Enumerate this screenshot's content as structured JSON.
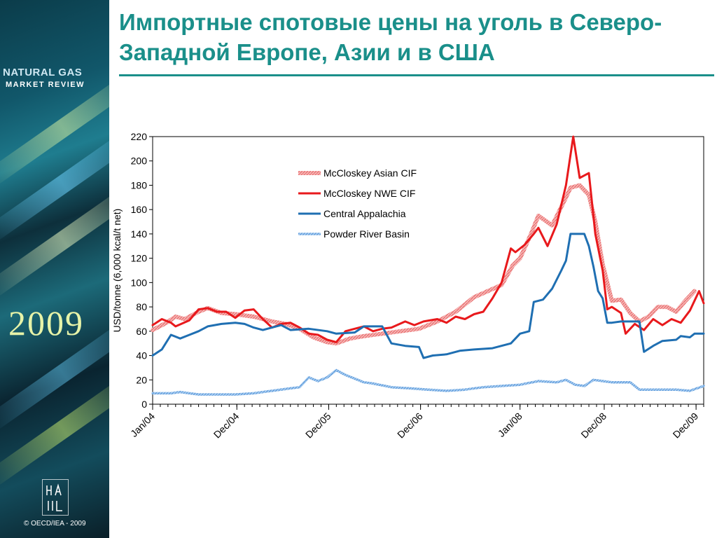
{
  "slide": {
    "title": "Импортные спотовые цены на уголь в Северо-Западной Европе, Азии и в США",
    "brand_line1": "NATURAL GAS",
    "brand_line2": "MARKET REVIEW",
    "year": "2009",
    "copyright": "© OECD/IEA - 2009",
    "accent_color": "#1a8f8a"
  },
  "chart_data": {
    "type": "line",
    "title": "",
    "xlabel": "",
    "ylabel": "USD/tonne (6,000 kcal/t net)",
    "ylim": [
      0,
      220
    ],
    "yticks": [
      0,
      20,
      40,
      60,
      80,
      100,
      120,
      140,
      160,
      180,
      200,
      220
    ],
    "xlim": [
      2004.0,
      2010.0
    ],
    "xtick_labels": [
      {
        "x": 2004.0,
        "label": "Jan/04"
      },
      {
        "x": 2004.917,
        "label": "Dec/04"
      },
      {
        "x": 2005.917,
        "label": "Dec/05"
      },
      {
        "x": 2006.917,
        "label": "Dec/06"
      },
      {
        "x": 2008.0,
        "label": "Jan/08"
      },
      {
        "x": 2008.917,
        "label": "Dec/08"
      },
      {
        "x": 2009.917,
        "label": "Dec/09"
      }
    ],
    "grid": false,
    "legend_position": "top-right",
    "series": [
      {
        "name": "McCloskey Asian CIF",
        "color": "#f29a9a",
        "style": "thick-hatched",
        "points": [
          [
            2004.0,
            61
          ],
          [
            2004.15,
            67
          ],
          [
            2004.25,
            72
          ],
          [
            2004.35,
            70
          ],
          [
            2004.5,
            76
          ],
          [
            2004.6,
            79
          ],
          [
            2004.75,
            75
          ],
          [
            2004.9,
            74
          ],
          [
            2005.1,
            72
          ],
          [
            2005.3,
            68
          ],
          [
            2005.45,
            66
          ],
          [
            2005.6,
            62
          ],
          [
            2005.75,
            55
          ],
          [
            2005.9,
            51
          ],
          [
            2006.0,
            50
          ],
          [
            2006.15,
            54
          ],
          [
            2006.3,
            56
          ],
          [
            2006.5,
            58
          ],
          [
            2006.7,
            60
          ],
          [
            2006.9,
            62
          ],
          [
            2007.1,
            68
          ],
          [
            2007.3,
            76
          ],
          [
            2007.5,
            88
          ],
          [
            2007.65,
            93
          ],
          [
            2007.8,
            98
          ],
          [
            2007.92,
            114
          ],
          [
            2008.0,
            120
          ],
          [
            2008.12,
            140
          ],
          [
            2008.2,
            155
          ],
          [
            2008.35,
            147
          ],
          [
            2008.5,
            170
          ],
          [
            2008.55,
            178
          ],
          [
            2008.65,
            180
          ],
          [
            2008.75,
            172
          ],
          [
            2008.82,
            150
          ],
          [
            2008.9,
            115
          ],
          [
            2009.0,
            85
          ],
          [
            2009.1,
            86
          ],
          [
            2009.2,
            75
          ],
          [
            2009.3,
            68
          ],
          [
            2009.4,
            72
          ],
          [
            2009.5,
            80
          ],
          [
            2009.6,
            80
          ],
          [
            2009.7,
            76
          ],
          [
            2009.8,
            85
          ],
          [
            2009.9,
            93
          ]
        ]
      },
      {
        "name": "McCloskey NWE CIF",
        "color": "#e8191c",
        "style": "solid",
        "points": [
          [
            2004.0,
            65
          ],
          [
            2004.1,
            70
          ],
          [
            2004.2,
            67
          ],
          [
            2004.25,
            64
          ],
          [
            2004.4,
            69
          ],
          [
            2004.5,
            78
          ],
          [
            2004.6,
            79
          ],
          [
            2004.7,
            76
          ],
          [
            2004.8,
            76
          ],
          [
            2004.9,
            71
          ],
          [
            2005.0,
            77
          ],
          [
            2005.1,
            78
          ],
          [
            2005.2,
            70
          ],
          [
            2005.3,
            63
          ],
          [
            2005.4,
            66
          ],
          [
            2005.5,
            67
          ],
          [
            2005.6,
            63
          ],
          [
            2005.7,
            58
          ],
          [
            2005.8,
            57
          ],
          [
            2005.9,
            53
          ],
          [
            2006.0,
            51
          ],
          [
            2006.1,
            60
          ],
          [
            2006.2,
            62
          ],
          [
            2006.3,
            64
          ],
          [
            2006.4,
            60
          ],
          [
            2006.5,
            62
          ],
          [
            2006.6,
            63
          ],
          [
            2006.75,
            68
          ],
          [
            2006.85,
            65
          ],
          [
            2006.95,
            68
          ],
          [
            2007.1,
            70
          ],
          [
            2007.2,
            67
          ],
          [
            2007.3,
            72
          ],
          [
            2007.4,
            70
          ],
          [
            2007.5,
            74
          ],
          [
            2007.6,
            76
          ],
          [
            2007.7,
            87
          ],
          [
            2007.8,
            100
          ],
          [
            2007.9,
            128
          ],
          [
            2007.95,
            125
          ],
          [
            2008.05,
            131
          ],
          [
            2008.15,
            140
          ],
          [
            2008.2,
            145
          ],
          [
            2008.3,
            130
          ],
          [
            2008.4,
            148
          ],
          [
            2008.5,
            180
          ],
          [
            2008.58,
            220
          ],
          [
            2008.65,
            186
          ],
          [
            2008.75,
            190
          ],
          [
            2008.82,
            140
          ],
          [
            2008.9,
            110
          ],
          [
            2008.95,
            78
          ],
          [
            2009.0,
            80
          ],
          [
            2009.1,
            75
          ],
          [
            2009.15,
            58
          ],
          [
            2009.25,
            66
          ],
          [
            2009.35,
            61
          ],
          [
            2009.45,
            70
          ],
          [
            2009.55,
            65
          ],
          [
            2009.65,
            70
          ],
          [
            2009.75,
            67
          ],
          [
            2009.85,
            77
          ],
          [
            2009.95,
            93
          ],
          [
            2010.0,
            83
          ]
        ]
      },
      {
        "name": "Central Appalachia",
        "color": "#1f6fb2",
        "style": "solid-step",
        "points": [
          [
            2004.0,
            40
          ],
          [
            2004.1,
            45
          ],
          [
            2004.2,
            57
          ],
          [
            2004.3,
            54
          ],
          [
            2004.4,
            57
          ],
          [
            2004.5,
            60
          ],
          [
            2004.6,
            64
          ],
          [
            2004.75,
            66
          ],
          [
            2004.9,
            67
          ],
          [
            2005.0,
            66
          ],
          [
            2005.1,
            63
          ],
          [
            2005.2,
            61
          ],
          [
            2005.3,
            63
          ],
          [
            2005.4,
            65
          ],
          [
            2005.5,
            61
          ],
          [
            2005.7,
            62
          ],
          [
            2005.9,
            60
          ],
          [
            2006.0,
            58
          ],
          [
            2006.2,
            59
          ],
          [
            2006.3,
            64
          ],
          [
            2006.5,
            64
          ],
          [
            2006.6,
            50
          ],
          [
            2006.75,
            48
          ],
          [
            2006.9,
            47
          ],
          [
            2006.95,
            38
          ],
          [
            2007.05,
            40
          ],
          [
            2007.2,
            41
          ],
          [
            2007.35,
            44
          ],
          [
            2007.5,
            45
          ],
          [
            2007.7,
            46
          ],
          [
            2007.9,
            50
          ],
          [
            2008.0,
            58
          ],
          [
            2008.1,
            60
          ],
          [
            2008.15,
            84
          ],
          [
            2008.25,
            86
          ],
          [
            2008.35,
            95
          ],
          [
            2008.45,
            110
          ],
          [
            2008.5,
            118
          ],
          [
            2008.55,
            140
          ],
          [
            2008.7,
            140
          ],
          [
            2008.75,
            130
          ],
          [
            2008.8,
            113
          ],
          [
            2008.85,
            93
          ],
          [
            2008.9,
            87
          ],
          [
            2008.95,
            67
          ],
          [
            2009.0,
            67
          ],
          [
            2009.1,
            68
          ],
          [
            2009.2,
            68
          ],
          [
            2009.3,
            68
          ],
          [
            2009.35,
            43
          ],
          [
            2009.45,
            48
          ],
          [
            2009.55,
            52
          ],
          [
            2009.7,
            53
          ],
          [
            2009.75,
            56
          ],
          [
            2009.85,
            55
          ],
          [
            2009.9,
            58
          ],
          [
            2010.0,
            58
          ]
        ]
      },
      {
        "name": "Powder River Basin",
        "color": "#7fb2e5",
        "style": "thin-hatched",
        "points": [
          [
            2004.0,
            9
          ],
          [
            2004.2,
            9
          ],
          [
            2004.3,
            10
          ],
          [
            2004.5,
            8
          ],
          [
            2004.7,
            8
          ],
          [
            2004.9,
            8
          ],
          [
            2005.1,
            9
          ],
          [
            2005.3,
            11
          ],
          [
            2005.5,
            13
          ],
          [
            2005.6,
            14
          ],
          [
            2005.7,
            22
          ],
          [
            2005.8,
            19
          ],
          [
            2005.9,
            22
          ],
          [
            2006.0,
            28
          ],
          [
            2006.1,
            24
          ],
          [
            2006.2,
            21
          ],
          [
            2006.3,
            18
          ],
          [
            2006.4,
            17
          ],
          [
            2006.6,
            14
          ],
          [
            2006.8,
            13
          ],
          [
            2007.0,
            12
          ],
          [
            2007.2,
            11
          ],
          [
            2007.4,
            12
          ],
          [
            2007.6,
            14
          ],
          [
            2007.8,
            15
          ],
          [
            2008.0,
            16
          ],
          [
            2008.2,
            19
          ],
          [
            2008.4,
            18
          ],
          [
            2008.5,
            20
          ],
          [
            2008.6,
            16
          ],
          [
            2008.7,
            15
          ],
          [
            2008.8,
            20
          ],
          [
            2008.9,
            19
          ],
          [
            2009.0,
            18
          ],
          [
            2009.2,
            18
          ],
          [
            2009.3,
            12
          ],
          [
            2009.5,
            12
          ],
          [
            2009.7,
            12
          ],
          [
            2009.85,
            11
          ],
          [
            2010.0,
            15
          ]
        ]
      }
    ]
  }
}
